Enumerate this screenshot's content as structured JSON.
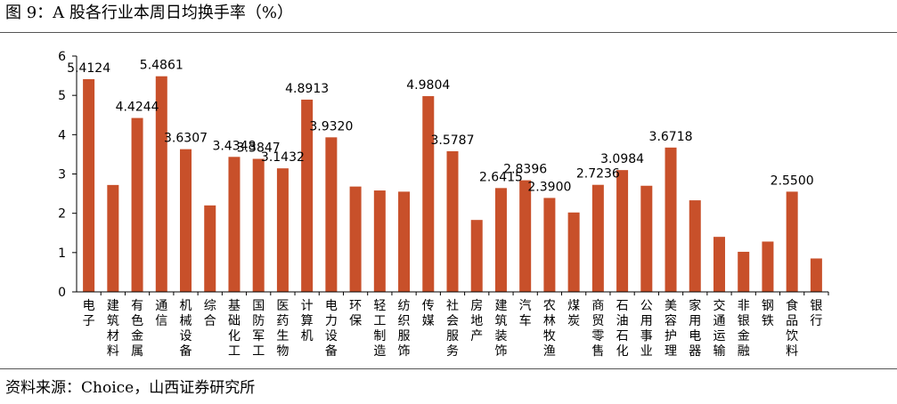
{
  "figure": {
    "title": "图 9：A 股各行业本周日均换手率（%）",
    "source": "资料来源：Choice，山西证券研究所"
  },
  "chart_data": {
    "type": "bar",
    "title": "图 9：A 股各行业本周日均换手率（%）",
    "xlabel": "",
    "ylabel": "",
    "ylim": [
      0,
      6
    ],
    "yticks": [
      0,
      1,
      2,
      3,
      4,
      5,
      6
    ],
    "grid": false,
    "bar_color": "#c8502a",
    "categories": [
      "电子",
      "建筑材料",
      "有色金属",
      "通信",
      "机械设备",
      "综合",
      "基础化工",
      "国防军工",
      "医药生物",
      "计算机",
      "电力设备",
      "环保",
      "轻工制造",
      "纺织服饰",
      "传媒",
      "社会服务",
      "房地产",
      "建筑装饰",
      "汽车",
      "农林牧渔",
      "煤炭",
      "商贸零售",
      "石油石化",
      "公用事业",
      "美容护理",
      "家用电器",
      "交通运输",
      "非银金融",
      "钢铁",
      "食品饮料",
      "银行"
    ],
    "values": [
      5.4124,
      2.72,
      4.4244,
      5.4861,
      3.6307,
      2.2,
      3.4348,
      3.3847,
      3.1432,
      4.8913,
      3.932,
      2.68,
      2.58,
      2.55,
      4.9804,
      3.5787,
      1.83,
      2.6415,
      2.8396,
      2.39,
      2.02,
      2.7236,
      3.0984,
      2.7,
      3.6718,
      2.33,
      1.4,
      1.02,
      1.28,
      2.55,
      0.85
    ],
    "data_labels": [
      "5.4124",
      "",
      "4.4244",
      "5.4861",
      "3.6307",
      "",
      "3.4348",
      "3.3847",
      "3.1432",
      "4.8913",
      "3.9320",
      "",
      "",
      "",
      "4.9804",
      "3.5787",
      "",
      "2.6415",
      "2.8396",
      "2.3900",
      "",
      "2.7236",
      "3.0984",
      "",
      "3.6718",
      "",
      "",
      "",
      "",
      "2.5500",
      ""
    ]
  }
}
